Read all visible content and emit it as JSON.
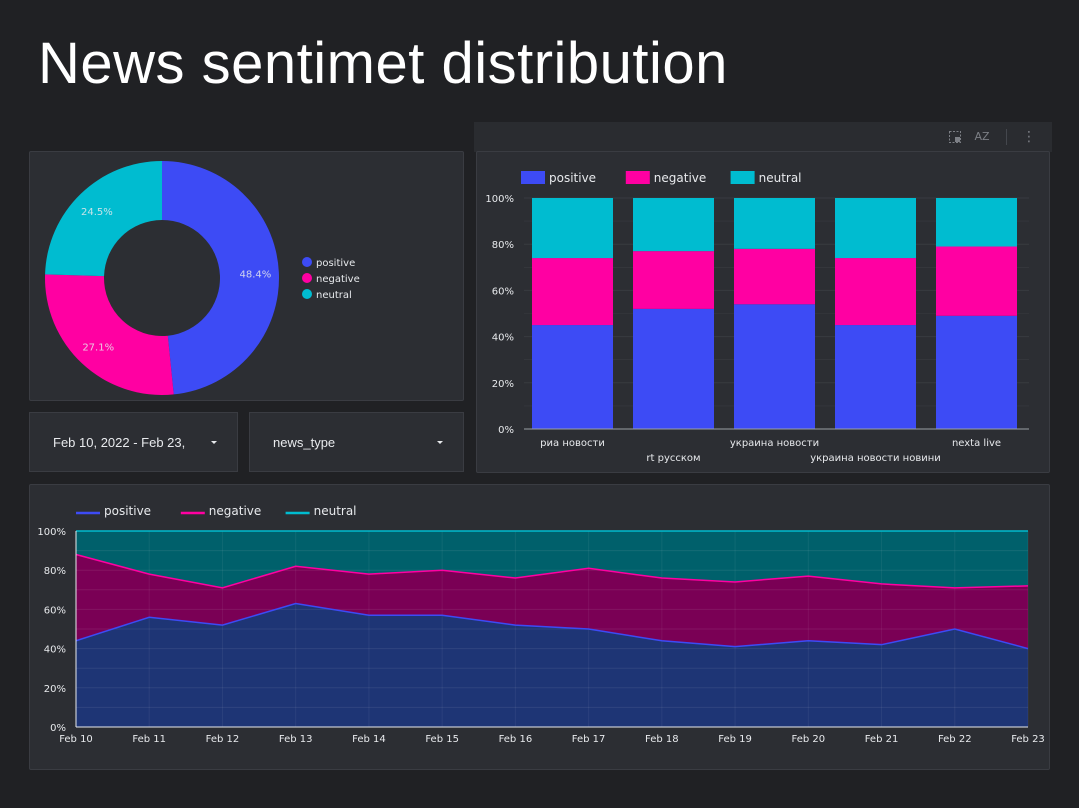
{
  "title": "News sentimet distribution",
  "colors": {
    "positive": "#3d4bf5",
    "negative": "#ff00a2",
    "neutral": "#00bcd0",
    "background": "#202124",
    "card": "#2c2e33",
    "grid": "#3e4147",
    "text": "#e8eaed"
  },
  "toolbar": {
    "icons": [
      "select-icon",
      "sort-az-icon",
      "more-vert-icon"
    ],
    "sort_label": "AZ",
    "more_label": "⋮"
  },
  "controls": {
    "date_range": "Feb 10, 2022 - Feb 23,",
    "news_type": "news_type"
  },
  "chart_data": [
    {
      "type": "pie",
      "variant": "donut",
      "labels": [
        "positive",
        "negative",
        "neutral"
      ],
      "values": [
        48.4,
        27.1,
        24.5
      ],
      "value_labels": [
        "48.4%",
        "27.1%",
        "24.5%"
      ],
      "legend": {
        "position": "right",
        "entries": [
          "positive",
          "negative",
          "neutral"
        ]
      }
    },
    {
      "type": "bar",
      "stacked": true,
      "percent": true,
      "categories": [
        "риа новости",
        "rt русском",
        "украина новости",
        "украина новости новини",
        "nexta live"
      ],
      "series": [
        {
          "name": "positive",
          "values": [
            45,
            52,
            54,
            45,
            49
          ]
        },
        {
          "name": "negative",
          "values": [
            29,
            25,
            24,
            29,
            30
          ]
        },
        {
          "name": "neutral",
          "values": [
            26,
            23,
            22,
            26,
            21
          ]
        }
      ],
      "ylim": [
        0,
        100
      ],
      "yticks": [
        "0%",
        "20%",
        "40%",
        "60%",
        "80%",
        "100%"
      ],
      "legend": {
        "position": "top-left",
        "entries": [
          "positive",
          "negative",
          "neutral"
        ]
      }
    },
    {
      "type": "area",
      "stacked": true,
      "percent": true,
      "x": [
        "Feb 10",
        "Feb 11",
        "Feb 12",
        "Feb 13",
        "Feb 14",
        "Feb 15",
        "Feb 16",
        "Feb 17",
        "Feb 18",
        "Feb 19",
        "Feb 20",
        "Feb 21",
        "Feb 22",
        "Feb 23"
      ],
      "series": [
        {
          "name": "positive",
          "values": [
            44,
            56,
            52,
            63,
            57,
            57,
            52,
            50,
            44,
            41,
            44,
            42,
            50,
            40
          ]
        },
        {
          "name": "negative",
          "values": [
            44,
            22,
            19,
            19,
            21,
            23,
            24,
            31,
            32,
            33,
            33,
            31,
            21,
            32
          ]
        },
        {
          "name": "neutral",
          "values": [
            12,
            22,
            29,
            18,
            22,
            20,
            24,
            19,
            24,
            26,
            23,
            27,
            29,
            28
          ]
        }
      ],
      "ylim": [
        0,
        100
      ],
      "yticks": [
        "0%",
        "20%",
        "40%",
        "60%",
        "80%",
        "100%"
      ],
      "legend": {
        "position": "top-left",
        "entries": [
          "positive",
          "negative",
          "neutral"
        ]
      }
    }
  ]
}
